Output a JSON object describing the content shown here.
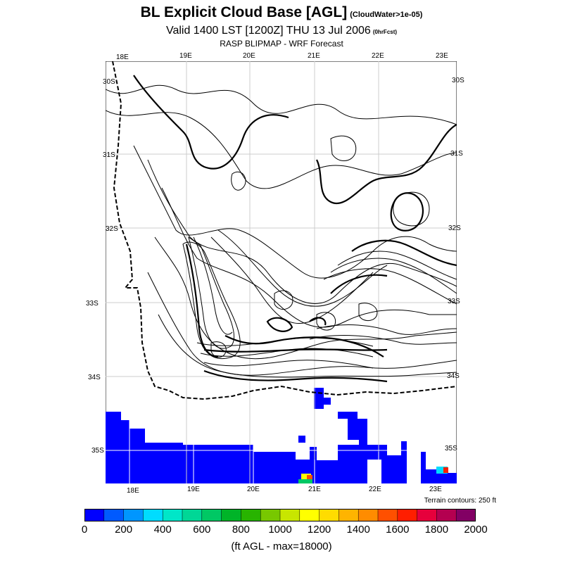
{
  "header": {
    "title": "BL Explicit Cloud Base [AGL]",
    "title_note": "(CloudWater>1e-05)",
    "valid": "Valid 1400 LST [1200Z] THU 13 Jul 2006",
    "valid_note": "(0hrFcst)",
    "source": "RASP BLIPMAP - WRF Forecast"
  },
  "map": {
    "top_longitudes": [
      "18E",
      "19E",
      "20E",
      "21E",
      "22E",
      "23E"
    ],
    "bottom_longitudes": [
      "18E",
      "19E",
      "20E",
      "21E",
      "22E",
      "23E"
    ],
    "left_latitudes": [
      "30S",
      "31S",
      "32S",
      "33S",
      "34S",
      "35S"
    ],
    "right_latitudes": [
      "30S",
      "31S",
      "32S",
      "33S",
      "34S",
      "35S"
    ],
    "terrain_note": "Terrain contours: 250 ft",
    "fill_color": "#0000ff"
  },
  "colorbar": {
    "ticks": [
      "0",
      "200",
      "400",
      "600",
      "800",
      "1000",
      "1200",
      "1400",
      "1600",
      "1800",
      "2000"
    ],
    "colors": [
      "#0000ff",
      "#005aff",
      "#0096ff",
      "#00dcff",
      "#00e6c8",
      "#00d796",
      "#00c864",
      "#00b428",
      "#28b400",
      "#78c800",
      "#c8e600",
      "#ffff00",
      "#ffdc00",
      "#ffb400",
      "#ff8c00",
      "#ff5000",
      "#ff1e00",
      "#e6003c",
      "#b40050",
      "#820064"
    ],
    "units_label": "(ft AGL - max=18000)"
  }
}
